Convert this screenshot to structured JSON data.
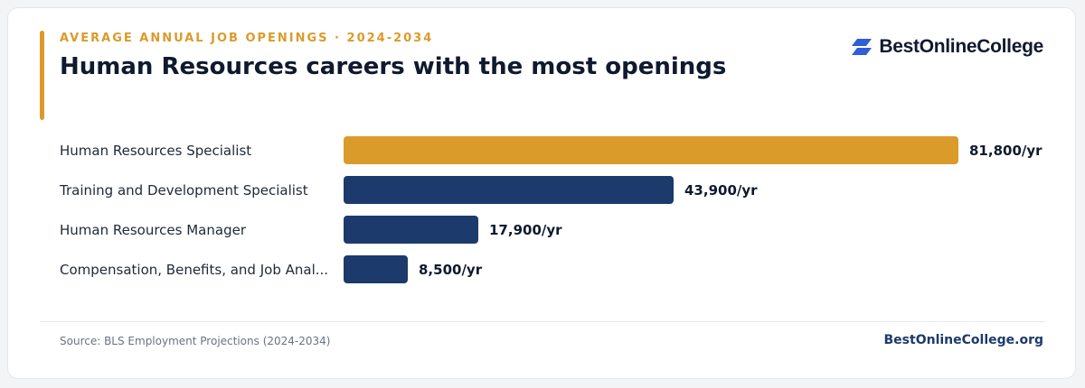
{
  "header": {
    "eyebrow": "AVERAGE ANNUAL JOB OPENINGS · 2024-2034",
    "title": "Human Resources careers with the most openings"
  },
  "brand": {
    "name": "BestOnlineCollege",
    "logo_icon": "parallelogram-stack-icon",
    "logo_color": "#2f5ed8"
  },
  "colors": {
    "highlight": "#db9b2a",
    "primary": "#1c3a6b"
  },
  "chart_data": {
    "type": "bar",
    "orientation": "horizontal",
    "title": "Human Resources careers with the most openings",
    "categories": [
      "Human Resources Specialist",
      "Training and Development Specialist",
      "Human Resources Manager",
      "Compensation, Benefits, and Job Analysis Specialist"
    ],
    "category_labels": [
      "Human Resources Specialist",
      "Training and Development Specialist",
      "Human Resources Manager",
      "Compensation, Benefits, and Job Anal..."
    ],
    "values": [
      81800,
      43900,
      17900,
      8500
    ],
    "value_labels": [
      "81,800/yr",
      "43,900/yr",
      "17,900/yr",
      "8,500/yr"
    ],
    "highlight_index": 0,
    "xlim": [
      0,
      81800
    ],
    "grid": false,
    "legend": "none"
  },
  "footer": {
    "source": "Source: BLS Employment Projections (2024-2034)",
    "site": "BestOnlineCollege.org"
  }
}
